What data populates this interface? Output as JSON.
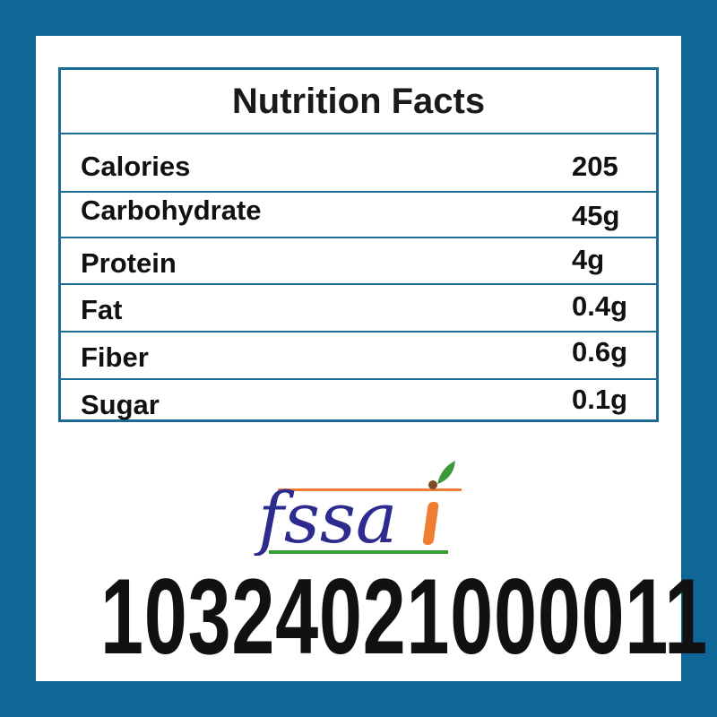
{
  "nutrition": {
    "title": "Nutrition Facts",
    "rows": [
      {
        "label": "Calories",
        "value": "205"
      },
      {
        "label": "Carbohydrate",
        "value": "45g"
      },
      {
        "label": "Protein",
        "value": "4g"
      },
      {
        "label": "Fat",
        "value": "0.4g"
      },
      {
        "label": "Fiber",
        "value": "0.6g"
      },
      {
        "label": "Sugar",
        "value": "0.1g"
      }
    ]
  },
  "logo": {
    "text": "fssai"
  },
  "license_number": "10324021000011",
  "colors": {
    "border": "#0e6796",
    "logo_blue": "#2e2b8f",
    "logo_orange": "#ef7d32",
    "logo_green": "#3a9a3a"
  }
}
